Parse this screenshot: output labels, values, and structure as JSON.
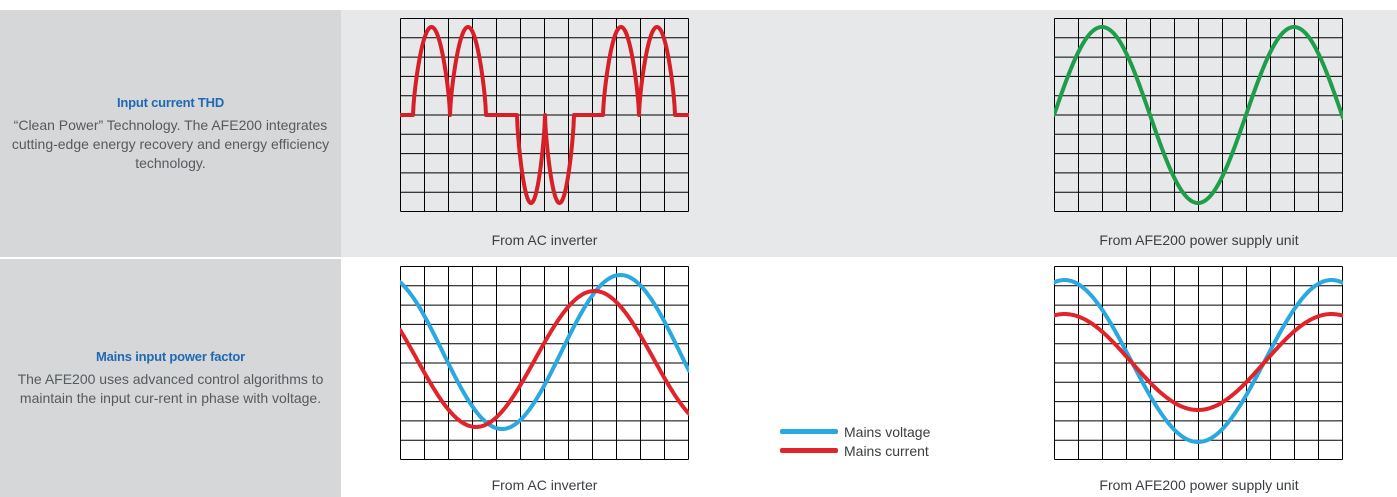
{
  "rows": [
    {
      "title": "Input current THD",
      "description": "“Clean Power” Technology. The AFE200 integrates cutting-edge energy recovery and energy efficiency technology.",
      "left_caption": "From AC inverter",
      "right_caption": "From AFE200 power supply unit"
    },
    {
      "title": "Mains input power factor",
      "description": "The AFE200 uses advanced control algorithms to maintain the input cur-rent in phase with voltage.",
      "left_caption": "From AC inverter",
      "right_caption": "From AFE200 power supply unit"
    }
  ],
  "legend": {
    "voltage_label": "Mains voltage",
    "current_label": "Mains current",
    "voltage_color": "#2aa8e0",
    "current_color": "#e2232a"
  },
  "colors": {
    "thd_inverter_trace": "#d71f27",
    "thd_afe_trace": "#1e9d4a",
    "grid": "#000000"
  }
}
